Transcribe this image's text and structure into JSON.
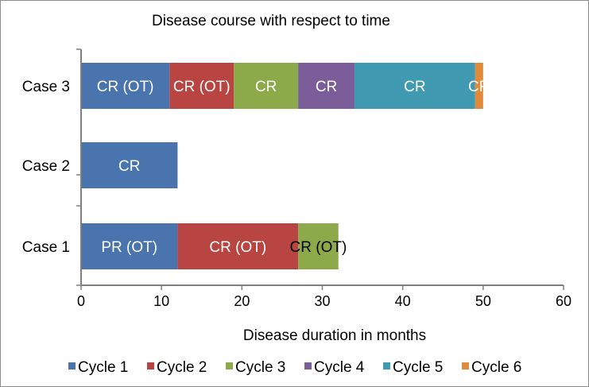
{
  "chart_data": {
    "type": "bar",
    "orientation": "horizontal",
    "stacked": true,
    "title": "Disease course with respect to time",
    "xlabel": "Disease duration in months",
    "ylabel": "",
    "xlim": [
      0,
      60
    ],
    "x_ticks": [
      "0",
      "10",
      "20",
      "30",
      "40",
      "50",
      "60"
    ],
    "grid": false,
    "legend_position": "bottom",
    "categories": [
      "Case 3",
      "Case 2",
      "Case 1"
    ],
    "series": [
      {
        "name": "Cycle 1",
        "color": "#4a74ad",
        "values": [
          11,
          12,
          12
        ],
        "labels": [
          "CR (OT)",
          "CR",
          "PR (OT)"
        ],
        "label_colors": [
          "#ffffff",
          "#ffffff",
          "#ffffff"
        ]
      },
      {
        "name": "Cycle 2",
        "color": "#b84541",
        "values": [
          8,
          0,
          15
        ],
        "labels": [
          "CR (OT)",
          "",
          "CR (OT)"
        ],
        "label_colors": [
          "#ffffff",
          "#ffffff",
          "#ffffff"
        ]
      },
      {
        "name": "Cycle 3",
        "color": "#8daa4b",
        "values": [
          8,
          0,
          5
        ],
        "labels": [
          "CR",
          "",
          "CR (OT)"
        ],
        "label_colors": [
          "#ffffff",
          "#ffffff",
          "#000000"
        ]
      },
      {
        "name": "Cycle 4",
        "color": "#7a5d99",
        "values": [
          7,
          0,
          0
        ],
        "labels": [
          "CR",
          "",
          ""
        ],
        "label_colors": [
          "#ffffff",
          "#ffffff",
          "#ffffff"
        ]
      },
      {
        "name": "Cycle 5",
        "color": "#3f9ab2",
        "values": [
          15,
          0,
          0
        ],
        "labels": [
          "CR",
          "",
          ""
        ],
        "label_colors": [
          "#ffffff",
          "#ffffff",
          "#ffffff"
        ]
      },
      {
        "name": "Cycle 6",
        "color": "#e08a3c",
        "values": [
          1,
          0,
          0
        ],
        "labels": [
          "CR",
          "",
          ""
        ],
        "label_colors": [
          "#ffffff",
          "#ffffff",
          "#ffffff"
        ]
      }
    ]
  }
}
